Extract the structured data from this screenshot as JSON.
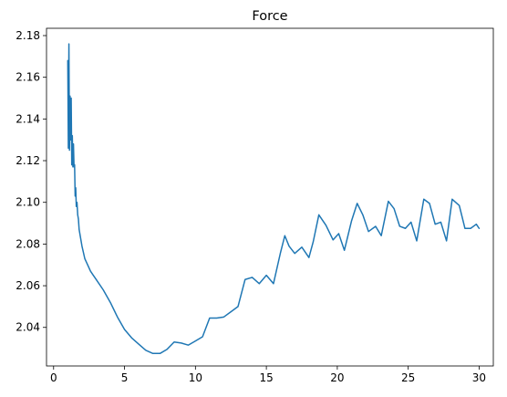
{
  "chart_data": {
    "type": "line",
    "title": "Force",
    "xlabel": "",
    "ylabel": "",
    "xlim": [
      -0.5,
      31.0
    ],
    "ylim": [
      2.0215,
      2.1835
    ],
    "x_ticks": [
      0,
      5,
      10,
      15,
      20,
      25,
      30
    ],
    "x_tick_labels": [
      "0",
      "5",
      "10",
      "15",
      "20",
      "25",
      "30"
    ],
    "y_ticks": [
      2.04,
      2.06,
      2.08,
      2.1,
      2.12,
      2.14,
      2.16,
      2.18
    ],
    "y_tick_labels": [
      "2.04",
      "2.06",
      "2.08",
      "2.10",
      "2.12",
      "2.14",
      "2.16",
      "2.18"
    ],
    "grid": false,
    "legend": "none",
    "series": [
      {
        "color": "#1f77b4",
        "x": [
          1.0,
          1.04,
          1.08,
          1.12,
          1.16,
          1.2,
          1.24,
          1.28,
          1.32,
          1.36,
          1.4,
          1.44,
          1.48,
          1.52,
          1.56,
          1.6,
          1.65,
          1.7,
          1.75,
          1.8,
          1.9,
          2.0,
          2.1,
          2.2,
          2.4,
          2.6,
          2.8,
          3.0,
          3.5,
          4.0,
          4.5,
          5.0,
          5.5,
          6.0,
          6.5,
          7.0,
          7.5,
          8.0,
          8.5,
          9.0,
          9.5,
          10.0,
          10.5,
          11.0,
          11.5,
          12.0,
          12.5,
          13.0,
          13.5,
          14.0,
          14.5,
          15.0,
          15.5,
          16.0,
          16.3,
          16.6,
          17.0,
          17.5,
          18.0,
          18.3,
          18.7,
          19.2,
          19.7,
          20.1,
          20.5,
          21.0,
          21.4,
          21.8,
          22.2,
          22.7,
          23.1,
          23.6,
          24.0,
          24.4,
          24.8,
          25.2,
          25.6,
          26.1,
          26.5,
          26.9,
          27.3,
          27.7,
          28.1,
          28.6,
          29.0,
          29.4,
          29.8,
          30.0
        ],
        "y": [
          2.168,
          2.126,
          2.176,
          2.125,
          2.151,
          2.13,
          2.15,
          2.118,
          2.132,
          2.117,
          2.128,
          2.117,
          2.118,
          2.103,
          2.107,
          2.098,
          2.1,
          2.094,
          2.092,
          2.087,
          2.083,
          2.079,
          2.076,
          2.073,
          2.07,
          2.067,
          2.065,
          2.063,
          2.058,
          2.052,
          2.045,
          2.039,
          2.035,
          2.032,
          2.029,
          2.0275,
          2.0275,
          2.0295,
          2.033,
          2.0325,
          2.0315,
          2.0335,
          2.0355,
          2.0445,
          2.0445,
          2.045,
          2.0475,
          2.05,
          2.063,
          2.064,
          2.061,
          2.065,
          2.061,
          2.076,
          2.084,
          2.079,
          2.0755,
          2.0785,
          2.0735,
          2.081,
          2.094,
          2.089,
          2.082,
          2.085,
          2.077,
          2.091,
          2.0995,
          2.094,
          2.086,
          2.0885,
          2.084,
          2.1005,
          2.097,
          2.0885,
          2.0875,
          2.0905,
          2.0815,
          2.1015,
          2.0995,
          2.0895,
          2.0905,
          2.0815,
          2.1015,
          2.0985,
          2.0875,
          2.0875,
          2.0895,
          2.0875
        ]
      }
    ]
  }
}
